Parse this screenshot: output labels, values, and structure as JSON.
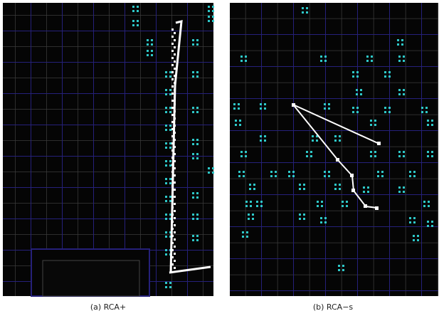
{
  "panels": [
    {
      "caption": "(a) RCA+"
    },
    {
      "caption": "(b) RCA−s"
    }
  ]
}
